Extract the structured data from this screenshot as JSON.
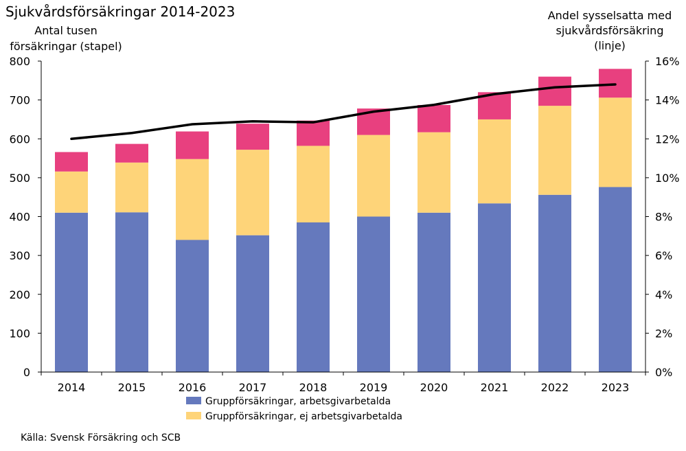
{
  "chart_data": {
    "type": "bar",
    "stacked": true,
    "title": "Sjukvårdsförsäkringar 2014-2023",
    "y_left_label": [
      "Antal tusen",
      "försäkringar (stapel)"
    ],
    "y_right_label": [
      "Andel sysselsatta med",
      "sjukvårdsförsäkring",
      "(linje)"
    ],
    "categories": [
      "2014",
      "2015",
      "2016",
      "2017",
      "2018",
      "2019",
      "2020",
      "2021",
      "2022",
      "2023"
    ],
    "ylim_left": [
      0,
      800
    ],
    "ylim_right": [
      0,
      16
    ],
    "left_ticks": [
      "0",
      "100",
      "200",
      "300",
      "400",
      "500",
      "600",
      "700",
      "800"
    ],
    "right_ticks": [
      "0%",
      "2%",
      "4%",
      "6%",
      "8%",
      "10%",
      "12%",
      "14%",
      "16%"
    ],
    "series": [
      {
        "name": "Gruppförsäkringar, arbetsgivarbetalda",
        "color": "#6579bd",
        "values": [
          410,
          411,
          340,
          352,
          385,
          400,
          410,
          434,
          456,
          476
        ]
      },
      {
        "name": "Gruppförsäkringar, ej arbetsgivarbetalda",
        "color": "#fed479",
        "values": [
          106,
          128,
          208,
          220,
          197,
          210,
          207,
          216,
          229,
          230
        ]
      },
      {
        "name": "",
        "color": "#e8407f",
        "values": [
          50,
          48,
          71,
          67,
          65,
          68,
          70,
          70,
          75,
          74
        ]
      }
    ],
    "line": {
      "name": "",
      "color": "#000000",
      "axis": "right",
      "values": [
        12.0,
        12.3,
        12.75,
        12.9,
        12.85,
        13.4,
        13.75,
        14.3,
        14.65,
        14.8
      ]
    },
    "grid": false,
    "legend_position": "bottom"
  },
  "source": "Källa: Svensk Försäkring och SCB"
}
